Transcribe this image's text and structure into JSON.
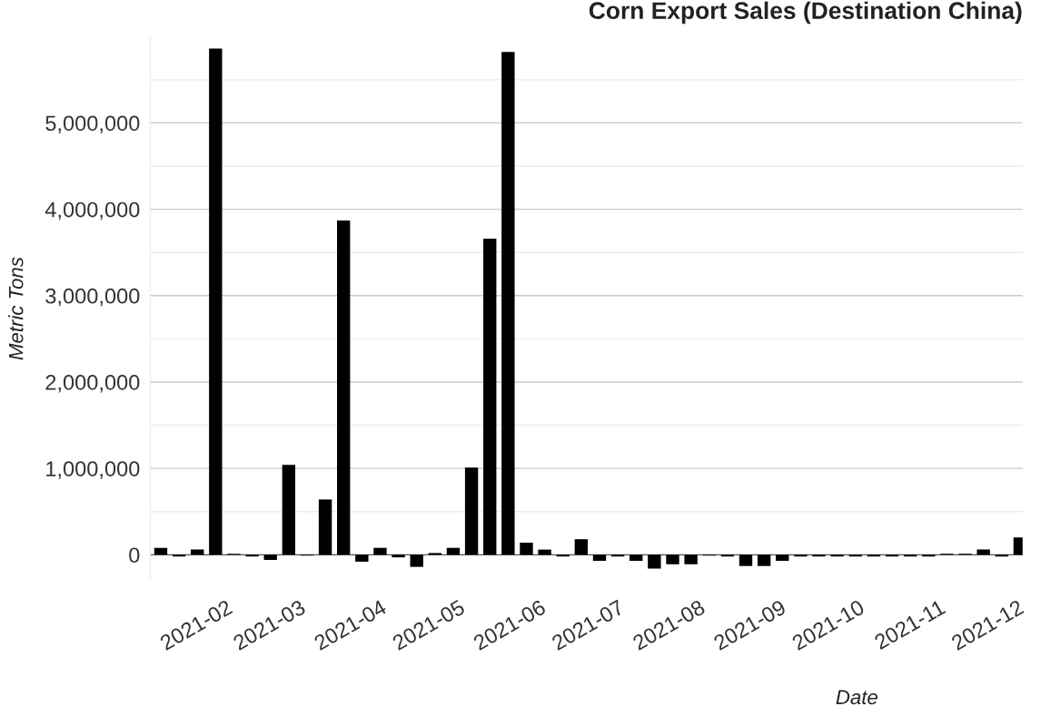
{
  "chart_data": {
    "type": "bar",
    "title": "Corn Export Sales (Destination China)",
    "xlabel": "Date",
    "ylabel": "Metric Tons",
    "x": [
      "2021-01-07",
      "2021-01-14",
      "2021-01-21",
      "2021-01-28",
      "2021-02-04",
      "2021-02-11",
      "2021-02-18",
      "2021-02-25",
      "2021-03-04",
      "2021-03-11",
      "2021-03-18",
      "2021-03-25",
      "2021-04-01",
      "2021-04-08",
      "2021-04-15",
      "2021-04-22",
      "2021-04-29",
      "2021-05-06",
      "2021-05-13",
      "2021-05-20",
      "2021-05-27",
      "2021-06-03",
      "2021-06-10",
      "2021-06-17",
      "2021-06-24",
      "2021-07-01",
      "2021-07-08",
      "2021-07-15",
      "2021-07-22",
      "2021-07-29",
      "2021-08-05",
      "2021-08-12",
      "2021-08-19",
      "2021-08-26",
      "2021-09-02",
      "2021-09-09",
      "2021-09-16",
      "2021-09-23",
      "2021-09-30",
      "2021-10-07",
      "2021-10-14",
      "2021-10-21",
      "2021-10-28",
      "2021-11-04",
      "2021-11-11",
      "2021-11-18",
      "2021-11-25",
      "2021-12-02"
    ],
    "values": [
      80000,
      -20000,
      60000,
      5860000,
      10000,
      -20000,
      -60000,
      1040000,
      -10000,
      640000,
      3870000,
      -80000,
      80000,
      -30000,
      -140000,
      20000,
      80000,
      1010000,
      3660000,
      5820000,
      140000,
      60000,
      -20000,
      180000,
      -70000,
      -20000,
      -70000,
      -160000,
      -110000,
      -110000,
      -10000,
      -20000,
      -130000,
      -130000,
      -70000,
      -20000,
      -20000,
      -20000,
      -20000,
      -20000,
      -20000,
      -20000,
      -20000,
      10000,
      10000,
      60000,
      -20000,
      200000
    ],
    "color": "#000000",
    "xlim": [
      "2021-01-03",
      "2021-12-03"
    ],
    "xticks": [
      "2021-02",
      "2021-03",
      "2021-04",
      "2021-05",
      "2021-06",
      "2021-07",
      "2021-08",
      "2021-09",
      "2021-10",
      "2021-11",
      "2021-12"
    ],
    "ylim": [
      -300000,
      6000000
    ],
    "yticks": [
      0,
      {
        "value": 500000,
        "label": null
      },
      {
        "value": 1000000,
        "label": "1,000,000"
      },
      {
        "value": 1500000,
        "label": null
      },
      {
        "value": 2000000,
        "label": "2,000,000"
      },
      {
        "value": 2500000,
        "label": null
      },
      {
        "value": 3000000,
        "label": "3,000,000"
      },
      {
        "value": 3500000,
        "label": null
      },
      {
        "value": 4000000,
        "label": "4,000,000"
      },
      {
        "value": 4500000,
        "label": null
      },
      {
        "value": 5000000,
        "label": "5,000,000"
      },
      {
        "value": 5500000,
        "label": null
      }
    ],
    "grid": "y"
  }
}
